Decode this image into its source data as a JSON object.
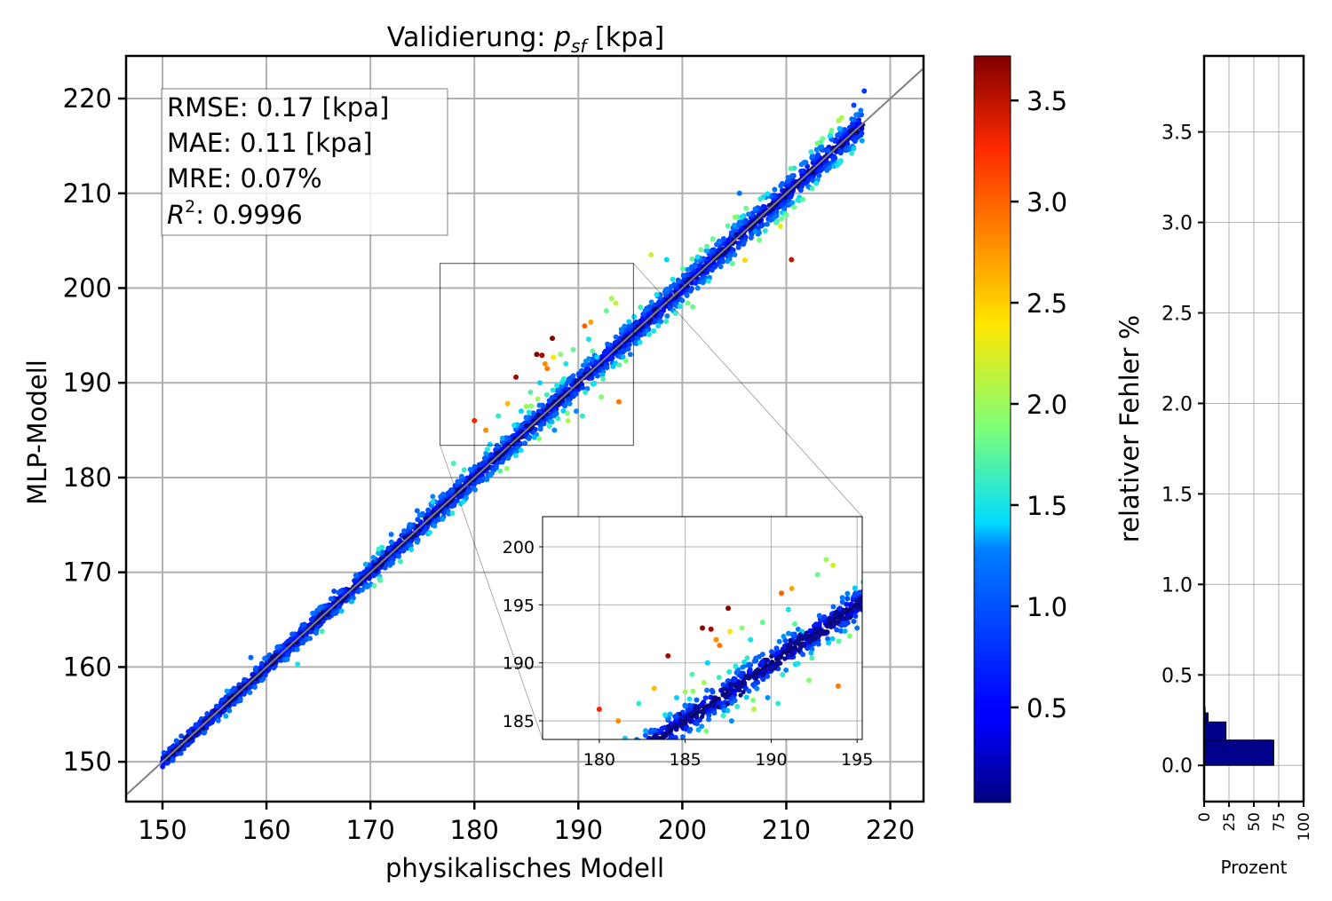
{
  "chart_data": [
    {
      "id": "main",
      "type": "scatter",
      "title_prefix": "Validierung: ",
      "title_var": "p",
      "title_sub": "sf",
      "title_unit": " [kpa]",
      "xlabel": "physikalisches Modell",
      "ylabel": "MLP-Modell",
      "xlim": [
        146.5,
        223.2
      ],
      "ylim": [
        145.8,
        224.5
      ],
      "xticks": [
        150,
        160,
        170,
        180,
        190,
        200,
        210,
        220
      ],
      "yticks": [
        150,
        160,
        170,
        180,
        190,
        200,
        210,
        220
      ],
      "grid": true,
      "reference_line": "y = x",
      "stats": {
        "rmse": "RMSE: 0.17 [kpa]",
        "mae": "MAE: 0.11 [kpa]",
        "mre": "MRE: 0.07%",
        "r2_label": "R",
        "r2_exp": "2",
        "r2_value": ": 0.9996"
      },
      "colorscale": "jet",
      "zoom_region": {
        "xlim": [
          176.7,
          195.3
        ],
        "ylim": [
          183.4,
          202.6
        ]
      },
      "outliers": [
        {
          "x": 180.0,
          "y": 186.0,
          "err": 3.3
        },
        {
          "x": 181.1,
          "y": 185.0,
          "err": 2.8
        },
        {
          "x": 182.3,
          "y": 186.5,
          "err": 1.6
        },
        {
          "x": 183.2,
          "y": 187.8,
          "err": 2.6
        },
        {
          "x": 184.0,
          "y": 190.6,
          "err": 3.6
        },
        {
          "x": 185.0,
          "y": 187.5,
          "err": 2.0
        },
        {
          "x": 185.4,
          "y": 189.0,
          "err": 1.7
        },
        {
          "x": 186.0,
          "y": 193.0,
          "err": 3.7
        },
        {
          "x": 186.5,
          "y": 192.9,
          "err": 3.6
        },
        {
          "x": 186.8,
          "y": 192.0,
          "err": 2.8
        },
        {
          "x": 187.5,
          "y": 194.7,
          "err": 3.7
        },
        {
          "x": 187.6,
          "y": 192.7,
          "err": 2.4
        },
        {
          "x": 187.0,
          "y": 191.5,
          "err": 2.9
        },
        {
          "x": 188.3,
          "y": 193.0,
          "err": 1.9
        },
        {
          "x": 189.5,
          "y": 193.5,
          "err": 1.8
        },
        {
          "x": 190.6,
          "y": 196.0,
          "err": 3.0
        },
        {
          "x": 191.2,
          "y": 196.4,
          "err": 2.7
        },
        {
          "x": 192.7,
          "y": 197.6,
          "err": 1.8
        },
        {
          "x": 193.2,
          "y": 198.9,
          "err": 2.0
        },
        {
          "x": 193.6,
          "y": 198.4,
          "err": 2.2
        },
        {
          "x": 193.9,
          "y": 188.0,
          "err": 2.9
        },
        {
          "x": 192.2,
          "y": 188.5,
          "err": 1.9
        },
        {
          "x": 190.4,
          "y": 186.5,
          "err": 1.6
        },
        {
          "x": 189.0,
          "y": 186.0,
          "err": 2.1
        },
        {
          "x": 191.8,
          "y": 192.7,
          "err": 1.4
        },
        {
          "x": 197.0,
          "y": 203.5,
          "err": 2.2
        },
        {
          "x": 198.5,
          "y": 203.0,
          "err": 1.4
        },
        {
          "x": 205.5,
          "y": 210.0,
          "err": 1.2
        },
        {
          "x": 210.5,
          "y": 203.0,
          "err": 3.5
        },
        {
          "x": 207.0,
          "y": 206.0,
          "err": 1.3
        },
        {
          "x": 208.5,
          "y": 208.5,
          "err": 1.6
        },
        {
          "x": 212.5,
          "y": 210.5,
          "err": 1.7
        },
        {
          "x": 201.0,
          "y": 198.0,
          "err": 1.8
        },
        {
          "x": 195.0,
          "y": 193.0,
          "err": 1.2
        },
        {
          "x": 178.0,
          "y": 181.5,
          "err": 1.7
        },
        {
          "x": 176.0,
          "y": 178.0,
          "err": 1.3
        },
        {
          "x": 174.5,
          "y": 176.5,
          "err": 1.1
        },
        {
          "x": 172.0,
          "y": 174.0,
          "err": 1.2
        },
        {
          "x": 163.0,
          "y": 160.3,
          "err": 1.5
        },
        {
          "x": 158.5,
          "y": 161.0,
          "err": 1.1
        },
        {
          "x": 166.5,
          "y": 168.0,
          "err": 0.9
        },
        {
          "x": 214.0,
          "y": 214.5,
          "err": 1.0
        },
        {
          "x": 216.5,
          "y": 219.3,
          "err": 0.9
        },
        {
          "x": 217.5,
          "y": 220.8,
          "err": 0.8
        },
        {
          "x": 181.5,
          "y": 183.5,
          "err": 1.4
        },
        {
          "x": 184.5,
          "y": 187.0,
          "err": 1.4
        },
        {
          "x": 186.3,
          "y": 190.0,
          "err": 1.4
        },
        {
          "x": 188.8,
          "y": 192.0,
          "err": 1.5
        },
        {
          "x": 191.0,
          "y": 194.6,
          "err": 1.5
        },
        {
          "x": 187.7,
          "y": 185.0,
          "err": 1.3
        },
        {
          "x": 189.8,
          "y": 187.0,
          "err": 1.3
        }
      ]
    },
    {
      "id": "colorbar",
      "type": "colorbar",
      "label": "relativer Fehler %",
      "range": [
        0.03,
        3.72
      ],
      "ticks": [
        0.5,
        1.0,
        1.5,
        2.0,
        2.5,
        3.0,
        3.5
      ],
      "tick_labels": [
        "0.5",
        "1.0",
        "1.5",
        "2.0",
        "2.5",
        "3.0",
        "3.5"
      ]
    },
    {
      "id": "histogram",
      "type": "bar",
      "orientation": "horizontal",
      "xlabel": "Prozent",
      "xlim": [
        0,
        100
      ],
      "xticks": [
        0,
        25,
        50,
        75,
        100
      ],
      "xtick_labels": [
        "0",
        "25",
        "50",
        "75",
        "100"
      ],
      "ylim": [
        -0.2,
        3.92
      ],
      "yticks": [
        0.0,
        0.5,
        1.0,
        1.5,
        2.0,
        2.5,
        3.0,
        3.5
      ],
      "ytick_labels": [
        "0.0",
        "0.5",
        "1.0",
        "1.5",
        "2.0",
        "2.5",
        "3.0",
        "3.5"
      ],
      "bins": [
        {
          "from": 0.0,
          "to": 0.14,
          "value": 70
        },
        {
          "from": 0.14,
          "to": 0.24,
          "value": 22
        },
        {
          "from": 0.24,
          "to": 0.29,
          "value": 4
        },
        {
          "from": 0.29,
          "to": 0.32,
          "value": 1
        }
      ],
      "bar_color": "#00008b"
    }
  ],
  "colors": {
    "grid": "#b0b0b0",
    "reference_line": "#808080",
    "bar": "#00008b"
  }
}
